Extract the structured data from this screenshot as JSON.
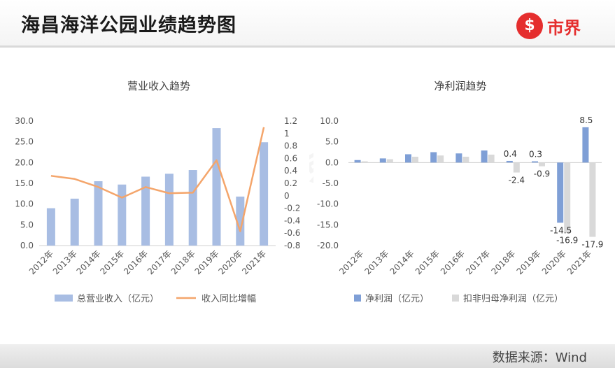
{
  "header": {
    "title": "海昌海洋公园业绩趋势图",
    "logo_symbol": "$",
    "logo_text": "市界",
    "accent": "#e52e2e"
  },
  "footer": {
    "source": "数据来源：Wind"
  },
  "watermark": "市界",
  "chart_data": [
    {
      "type": "bar",
      "title": "营业收入趋势",
      "categories": [
        "2012年",
        "2013年",
        "2014年",
        "2015年",
        "2016年",
        "2017年",
        "2018年",
        "2019年",
        "2020年",
        "2021年"
      ],
      "series": [
        {
          "name": "总营业收入（亿元）",
          "type": "bar",
          "axis": "left",
          "color": "#a8bde3",
          "values": [
            9.0,
            11.3,
            15.5,
            14.7,
            16.6,
            17.3,
            18.2,
            28.3,
            11.8,
            24.9
          ]
        },
        {
          "name": "收入同比增幅",
          "type": "line",
          "axis": "right",
          "color": "#f4a56b",
          "values": [
            0.32,
            0.27,
            0.14,
            -0.03,
            0.14,
            0.04,
            0.05,
            0.57,
            -0.57,
            1.1
          ]
        }
      ],
      "y_left": {
        "min": 0,
        "max": 30,
        "ticks": [
          "0.0",
          "5.0",
          "10.0",
          "15.0",
          "20.0",
          "25.0",
          "30.0"
        ]
      },
      "y_right": {
        "min": -0.8,
        "max": 1.2,
        "ticks": [
          "-0.8",
          "-0.6",
          "-0.4",
          "-0.2",
          "0",
          "0.2",
          "0.4",
          "0.6",
          "0.8",
          "1",
          "1.2"
        ]
      },
      "grid": false,
      "legend": "bottom"
    },
    {
      "type": "bar",
      "title": "净利润趋势",
      "categories": [
        "2012年",
        "2013年",
        "2014年",
        "2015年",
        "2016年",
        "2017年",
        "2018年",
        "2019年",
        "2020年",
        "2021年"
      ],
      "series": [
        {
          "name": "净利润（亿元）",
          "color": "#7f9fd6",
          "values": [
            0.6,
            1.0,
            2.0,
            2.5,
            2.2,
            2.9,
            0.4,
            0.3,
            -14.5,
            8.5
          ]
        },
        {
          "name": "扣非归母净利润（亿元）",
          "color": "#d9d9d9",
          "values": [
            0.3,
            0.8,
            1.4,
            1.7,
            1.4,
            1.9,
            -2.4,
            -0.9,
            -16.9,
            -17.9
          ]
        }
      ],
      "data_labels": [
        {
          "series": 0,
          "index": 6,
          "text": "0.4"
        },
        {
          "series": 1,
          "index": 6,
          "text": "-2.4"
        },
        {
          "series": 0,
          "index": 7,
          "text": "0.3"
        },
        {
          "series": 1,
          "index": 7,
          "text": "-0.9"
        },
        {
          "series": 0,
          "index": 8,
          "text": "-14.5"
        },
        {
          "series": 1,
          "index": 8,
          "text": "-16.9"
        },
        {
          "series": 0,
          "index": 9,
          "text": "8.5"
        },
        {
          "series": 1,
          "index": 9,
          "text": "-17.9"
        }
      ],
      "y": {
        "min": -20,
        "max": 10,
        "ticks": [
          "-20.0",
          "-15.0",
          "-10.0",
          "-5.0",
          "0.0",
          "5.0",
          "10.0"
        ]
      },
      "grid": false,
      "legend": "bottom"
    }
  ]
}
